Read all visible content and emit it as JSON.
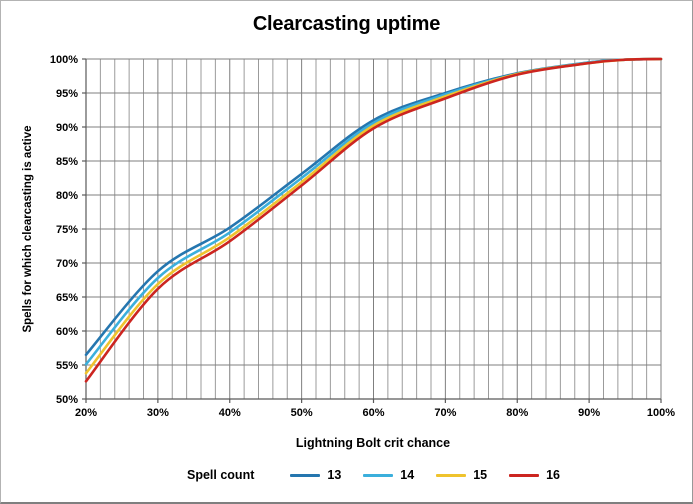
{
  "frame": {
    "background": "#ffffff",
    "border_color": "#b3b3b3"
  },
  "chart_data": {
    "type": "line",
    "title": "Clearcasting uptime",
    "xlabel": "Lightning Bolt crit chance",
    "ylabel": "Spells for which clearcasting is active",
    "legend_title": "Spell count",
    "legend_position": "bottom",
    "grid": "on",
    "xlim": [
      20,
      100
    ],
    "ylim": [
      50,
      100
    ],
    "x_minor_step": 2,
    "x_ticks": [
      20,
      30,
      40,
      50,
      60,
      70,
      80,
      90,
      100
    ],
    "x_tick_labels": [
      "20%",
      "30%",
      "40%",
      "50%",
      "60%",
      "70%",
      "80%",
      "90%",
      "100%"
    ],
    "y_ticks": [
      50,
      55,
      60,
      65,
      70,
      75,
      80,
      85,
      90,
      95,
      100
    ],
    "y_tick_labels": [
      "50%",
      "55%",
      "60%",
      "65%",
      "70%",
      "75%",
      "80%",
      "85%",
      "90%",
      "95%",
      "100%"
    ],
    "x": [
      20,
      30,
      40,
      50,
      60,
      70,
      80,
      90,
      95,
      100
    ],
    "series": [
      {
        "name": "13",
        "color": "#2576af",
        "values": [
          56.5,
          68.8,
          75.2,
          83.1,
          91.0,
          95.0,
          97.9,
          99.5,
          99.9,
          100
        ]
      },
      {
        "name": "14",
        "color": "#3bafdc",
        "values": [
          55.1,
          67.8,
          74.5,
          82.5,
          90.6,
          94.8,
          97.8,
          99.5,
          99.9,
          100
        ]
      },
      {
        "name": "15",
        "color": "#efc32d",
        "values": [
          53.8,
          66.9,
          73.8,
          81.9,
          90.2,
          94.5,
          97.8,
          99.4,
          99.9,
          100
        ]
      },
      {
        "name": "16",
        "color": "#cc2520",
        "values": [
          52.6,
          66.2,
          73.2,
          81.4,
          89.8,
          94.2,
          97.7,
          99.4,
          99.9,
          100
        ]
      }
    ],
    "minor_grid_color": "#9b9b9b",
    "major_grid_color": "#7f7f7f",
    "axis_color": "#595959",
    "line_width": 2.6
  }
}
